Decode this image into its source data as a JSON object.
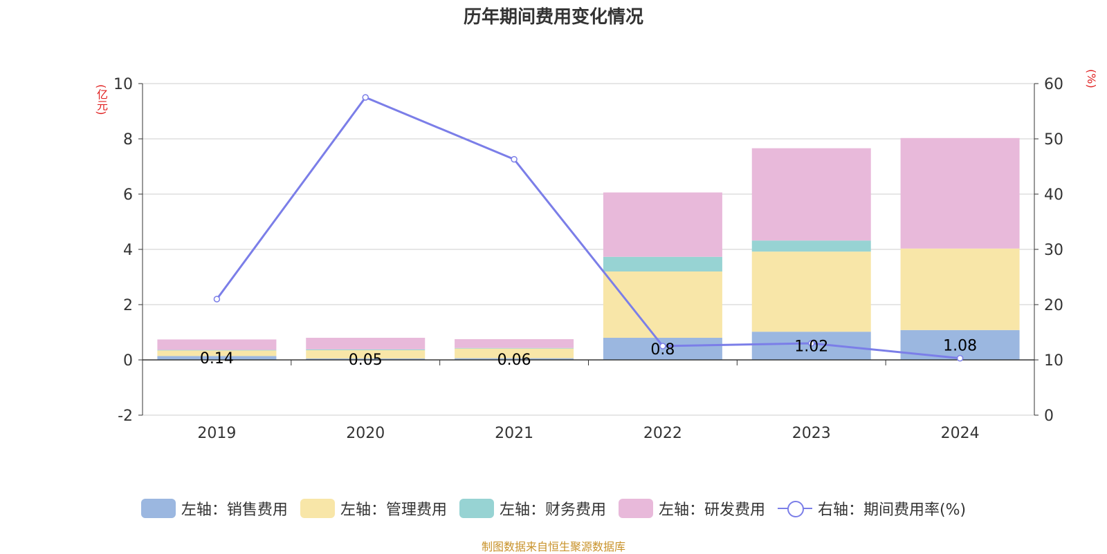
{
  "title": "历年期间费用变化情况",
  "footer": "制图数据来自恒生聚源数据库",
  "colors": {
    "sales": "#9bb7e0",
    "admin": "#f8e6a8",
    "finance": "#97d3d3",
    "rd": "#e8b9da",
    "rate": "#7b7ee8",
    "unit": "#e02020"
  },
  "chart_data": {
    "type": "bar",
    "stacked": true,
    "categories": [
      "2019",
      "2020",
      "2021",
      "2022",
      "2023",
      "2024"
    ],
    "left_axis": {
      "unit": "(亿元)",
      "ylim": [
        -2,
        10
      ],
      "ticks": [
        -2,
        0,
        2,
        4,
        6,
        8,
        10
      ]
    },
    "right_axis": {
      "unit": "(%)",
      "ylim": [
        0,
        60
      ],
      "ticks": [
        0,
        10,
        20,
        30,
        40,
        50,
        60
      ]
    },
    "series": [
      {
        "name": "左轴：销售费用",
        "values": [
          0.14,
          0.05,
          0.06,
          0.8,
          1.02,
          1.08
        ],
        "labels": [
          "0.14",
          "0.05",
          "0.06",
          "0.8",
          "1.02",
          "1.08"
        ]
      },
      {
        "name": "左轴：管理费用",
        "values": [
          0.2,
          0.3,
          0.35,
          2.4,
          2.9,
          2.95
        ]
      },
      {
        "name": "左轴：财务费用",
        "values": [
          0.02,
          0.03,
          0.02,
          0.53,
          0.4,
          0.0
        ]
      },
      {
        "name": "左轴：研发费用",
        "values": [
          0.38,
          0.42,
          0.32,
          2.33,
          3.34,
          4.0
        ]
      }
    ],
    "line_series": {
      "name": "右轴：期间费用率(%)",
      "values": [
        21,
        57.5,
        46.3,
        12.5,
        13.0,
        10.3
      ]
    },
    "grid": true,
    "legend": "bottom"
  }
}
